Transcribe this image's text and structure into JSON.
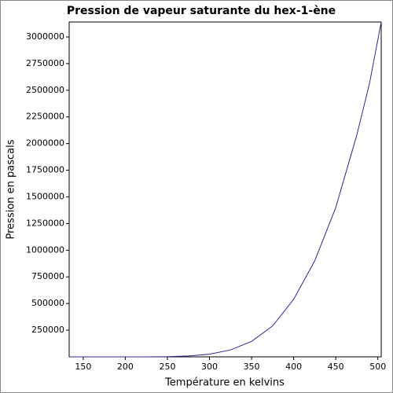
{
  "chart_data": {
    "type": "line",
    "title": "Pression de vapeur saturante du hex-1-ène",
    "x_label": "Température en kelvins",
    "y_label": "Pression en pascals",
    "x": [
      133.3,
      175,
      200,
      225,
      250,
      275,
      300,
      325,
      350,
      375,
      400,
      425,
      450,
      475,
      490,
      504
    ],
    "series": [
      {
        "color": "#2a2a9a",
        "values": [
          0,
          5,
          60,
          450,
          2000,
          8000,
          25000,
          65000,
          145000,
          290000,
          540000,
          900000,
          1400000,
          2080000,
          2560000,
          3140000
        ]
      }
    ],
    "xlim": [
      133.3,
      504
    ],
    "ylim": [
      0,
      3140000
    ],
    "xticks": [
      150,
      200,
      250,
      300,
      350,
      400,
      450,
      500
    ],
    "yticks": [
      250000,
      500000,
      750000,
      1000000,
      1250000,
      1500000,
      1750000,
      2000000,
      2250000,
      2500000,
      2750000,
      3000000
    ]
  }
}
